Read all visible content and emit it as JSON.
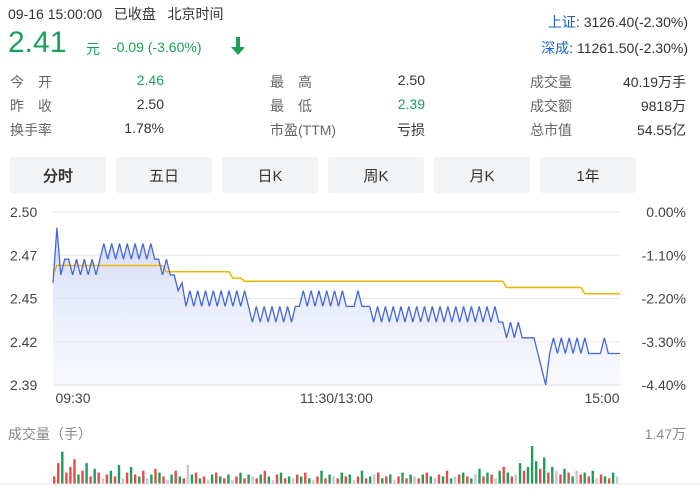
{
  "header": {
    "time": "09-16 15:00:00",
    "status": "已收盘",
    "timezone": "北京时间",
    "price": "2.41",
    "currency": "元",
    "change": "-0.09 (-3.60%)",
    "arrow_icon": "arrow-down-icon",
    "down_color": "#1aa05a"
  },
  "indices": [
    {
      "name": "上证",
      "value": ": 3126.40(-2.30%)"
    },
    {
      "name": "深成",
      "value": ": 11261.50(-2.30%)"
    }
  ],
  "stats": {
    "col1": [
      {
        "label": "今　开",
        "value": "2.46",
        "color": "green"
      },
      {
        "label": "昨　收",
        "value": "2.50",
        "color": ""
      },
      {
        "label": "换手率",
        "value": "1.78%",
        "color": ""
      }
    ],
    "col2": [
      {
        "label": "最　高",
        "value": "2.50",
        "color": ""
      },
      {
        "label": "最　低",
        "value": "2.39",
        "color": "green"
      },
      {
        "label": "市盈(TTM)",
        "value": "亏损",
        "color": ""
      }
    ],
    "col3": [
      {
        "label": "成交量",
        "value": "40.19万手",
        "color": ""
      },
      {
        "label": "成交额",
        "value": "9818万",
        "color": ""
      },
      {
        "label": "总市值",
        "value": "54.55亿",
        "color": ""
      }
    ]
  },
  "tabs": [
    "分时",
    "五日",
    "日K",
    "周K",
    "月K",
    "1年"
  ],
  "active_tab": 0,
  "volume": {
    "title": "成交量（手）",
    "max_label": "1.47万"
  },
  "chart_data": {
    "type": "line",
    "title": "",
    "x_tick_labels": [
      "09:30",
      "11:30/13:00",
      "15:00"
    ],
    "y_tick_labels": [
      "2.50",
      "2.47",
      "2.45",
      "2.42",
      "2.39"
    ],
    "y_right_tick_labels": [
      "0.00%",
      "-1.10%",
      "-2.20%",
      "-3.30%",
      "-4.40%"
    ],
    "ylim": [
      2.39,
      2.5
    ],
    "series": [
      {
        "color": "#4466dd",
        "values": [
          2.455,
          2.49,
          2.46,
          2.47,
          2.47,
          2.46,
          2.47,
          2.46,
          2.47,
          2.46,
          2.47,
          2.46,
          2.47,
          2.48,
          2.47,
          2.48,
          2.47,
          2.48,
          2.47,
          2.48,
          2.47,
          2.48,
          2.47,
          2.48,
          2.47,
          2.48,
          2.47,
          2.47,
          2.46,
          2.47,
          2.46,
          2.46,
          2.45,
          2.455,
          2.44,
          2.45,
          2.44,
          2.45,
          2.44,
          2.45,
          2.44,
          2.45,
          2.44,
          2.45,
          2.44,
          2.45,
          2.44,
          2.45,
          2.44,
          2.45,
          2.44,
          2.43,
          2.44,
          2.43,
          2.44,
          2.43,
          2.44,
          2.43,
          2.44,
          2.43,
          2.44,
          2.43,
          2.44,
          2.44,
          2.45,
          2.44,
          2.45,
          2.44,
          2.45,
          2.44,
          2.45,
          2.44,
          2.45,
          2.44,
          2.45,
          2.44,
          2.44,
          2.44,
          2.45,
          2.44,
          2.44,
          2.44,
          2.43,
          2.44,
          2.43,
          2.44,
          2.43,
          2.44,
          2.43,
          2.44,
          2.43,
          2.44,
          2.43,
          2.44,
          2.43,
          2.44,
          2.43,
          2.44,
          2.43,
          2.44,
          2.43,
          2.44,
          2.43,
          2.44,
          2.43,
          2.44,
          2.43,
          2.44,
          2.43,
          2.44,
          2.43,
          2.44,
          2.43,
          2.44,
          2.43,
          2.43,
          2.42,
          2.43,
          2.42,
          2.43,
          2.42,
          2.42,
          2.42,
          2.42,
          2.41,
          2.4,
          2.39,
          2.41,
          2.42,
          2.41,
          2.42,
          2.41,
          2.42,
          2.41,
          2.42,
          2.41,
          2.42,
          2.41,
          2.41,
          2.41,
          2.41,
          2.42,
          2.41,
          2.41,
          2.41,
          2.41
        ]
      },
      {
        "color": "#f0b400",
        "values": [
          2.46,
          2.466,
          2.466,
          2.466,
          2.466,
          2.466,
          2.466,
          2.466,
          2.466,
          2.466,
          2.466,
          2.466,
          2.466,
          2.466,
          2.466,
          2.466,
          2.466,
          2.466,
          2.466,
          2.466,
          2.466,
          2.466,
          2.466,
          2.466,
          2.466,
          2.466,
          2.466,
          2.466,
          2.466,
          2.462,
          2.462,
          2.462,
          2.462,
          2.462,
          2.462,
          2.462,
          2.462,
          2.462,
          2.462,
          2.462,
          2.462,
          2.462,
          2.462,
          2.462,
          2.462,
          2.462,
          2.458,
          2.458,
          2.458,
          2.456,
          2.456,
          2.456,
          2.456,
          2.456,
          2.456,
          2.456,
          2.456,
          2.456,
          2.456,
          2.456,
          2.456,
          2.456,
          2.456,
          2.456,
          2.456,
          2.456,
          2.456,
          2.456,
          2.456,
          2.456,
          2.456,
          2.456,
          2.456,
          2.456,
          2.456,
          2.456,
          2.456,
          2.456,
          2.456,
          2.456,
          2.456,
          2.456,
          2.456,
          2.456,
          2.456,
          2.456,
          2.456,
          2.456,
          2.456,
          2.456,
          2.456,
          2.456,
          2.456,
          2.456,
          2.456,
          2.456,
          2.456,
          2.456,
          2.456,
          2.456,
          2.456,
          2.456,
          2.456,
          2.456,
          2.456,
          2.456,
          2.456,
          2.456,
          2.456,
          2.456,
          2.456,
          2.456,
          2.456,
          2.456,
          2.456,
          2.456,
          2.452,
          2.452,
          2.452,
          2.452,
          2.452,
          2.452,
          2.452,
          2.452,
          2.452,
          2.452,
          2.452,
          2.452,
          2.452,
          2.452,
          2.452,
          2.452,
          2.452,
          2.452,
          2.452,
          2.452,
          2.448,
          2.448,
          2.448,
          2.448,
          2.448,
          2.448,
          2.448,
          2.448,
          2.448,
          2.448
        ]
      }
    ],
    "volume_bars": [
      {
        "v": 0.2,
        "c": "r"
      },
      {
        "v": 0.55,
        "c": "r"
      },
      {
        "v": 0.85,
        "c": "g"
      },
      {
        "v": 0.3,
        "c": "r"
      },
      {
        "v": 0.45,
        "c": "r"
      },
      {
        "v": 0.65,
        "c": "r"
      },
      {
        "v": 0.25,
        "c": "g"
      },
      {
        "v": 0.35,
        "c": "r"
      },
      {
        "v": 0.55,
        "c": "g"
      },
      {
        "v": 0.2,
        "c": "r"
      },
      {
        "v": 0.4,
        "c": "g"
      },
      {
        "v": 0.3,
        "c": "r"
      },
      {
        "v": 0.15,
        "c": "x"
      },
      {
        "v": 0.25,
        "c": "r"
      },
      {
        "v": 0.35,
        "c": "g"
      },
      {
        "v": 0.2,
        "c": "r"
      },
      {
        "v": 0.5,
        "c": "g"
      },
      {
        "v": 0.15,
        "c": "x"
      },
      {
        "v": 0.3,
        "c": "r"
      },
      {
        "v": 0.45,
        "c": "g"
      },
      {
        "v": 0.25,
        "c": "r"
      },
      {
        "v": 0.2,
        "c": "g"
      },
      {
        "v": 0.35,
        "c": "r"
      },
      {
        "v": 0.15,
        "c": "x"
      },
      {
        "v": 0.25,
        "c": "g"
      },
      {
        "v": 0.4,
        "c": "r"
      },
      {
        "v": 0.3,
        "c": "g"
      },
      {
        "v": 0.2,
        "c": "r"
      },
      {
        "v": 0.1,
        "c": "x"
      },
      {
        "v": 0.25,
        "c": "g"
      },
      {
        "v": 0.35,
        "c": "r"
      },
      {
        "v": 0.2,
        "c": "g"
      },
      {
        "v": 0.15,
        "c": "r"
      },
      {
        "v": 0.5,
        "c": "x"
      },
      {
        "v": 0.25,
        "c": "g"
      },
      {
        "v": 0.3,
        "c": "r"
      },
      {
        "v": 0.15,
        "c": "g"
      },
      {
        "v": 0.2,
        "c": "r"
      },
      {
        "v": 0.1,
        "c": "x"
      },
      {
        "v": 0.25,
        "c": "g"
      },
      {
        "v": 0.3,
        "c": "r"
      },
      {
        "v": 0.2,
        "c": "g"
      },
      {
        "v": 0.15,
        "c": "r"
      },
      {
        "v": 0.25,
        "c": "g"
      },
      {
        "v": 0.1,
        "c": "x"
      },
      {
        "v": 0.2,
        "c": "r"
      },
      {
        "v": 0.3,
        "c": "g"
      },
      {
        "v": 0.15,
        "c": "r"
      },
      {
        "v": 0.25,
        "c": "g"
      },
      {
        "v": 0.2,
        "c": "x"
      },
      {
        "v": 0.15,
        "c": "r"
      },
      {
        "v": 0.25,
        "c": "g"
      },
      {
        "v": 0.35,
        "c": "r"
      },
      {
        "v": 0.2,
        "c": "g"
      },
      {
        "v": 0.1,
        "c": "x"
      },
      {
        "v": 0.25,
        "c": "r"
      },
      {
        "v": 0.3,
        "c": "g"
      },
      {
        "v": 0.15,
        "c": "r"
      },
      {
        "v": 0.2,
        "c": "g"
      },
      {
        "v": 0.15,
        "c": "x"
      },
      {
        "v": 0.25,
        "c": "r"
      },
      {
        "v": 0.2,
        "c": "g"
      },
      {
        "v": 0.3,
        "c": "r"
      },
      {
        "v": 0.15,
        "c": "g"
      },
      {
        "v": 0.1,
        "c": "x"
      },
      {
        "v": 0.2,
        "c": "r"
      },
      {
        "v": 0.35,
        "c": "g"
      },
      {
        "v": 0.15,
        "c": "r"
      },
      {
        "v": 0.25,
        "c": "g"
      },
      {
        "v": 0.2,
        "c": "x"
      },
      {
        "v": 0.15,
        "c": "r"
      },
      {
        "v": 0.3,
        "c": "g"
      },
      {
        "v": 0.2,
        "c": "r"
      },
      {
        "v": 0.25,
        "c": "g"
      },
      {
        "v": 0.1,
        "c": "x"
      },
      {
        "v": 0.2,
        "c": "r"
      },
      {
        "v": 0.35,
        "c": "g"
      },
      {
        "v": 0.15,
        "c": "r"
      },
      {
        "v": 0.2,
        "c": "g"
      },
      {
        "v": 0.25,
        "c": "x"
      },
      {
        "v": 0.3,
        "c": "r"
      },
      {
        "v": 0.15,
        "c": "g"
      },
      {
        "v": 0.2,
        "c": "r"
      },
      {
        "v": 0.25,
        "c": "g"
      },
      {
        "v": 0.1,
        "c": "x"
      },
      {
        "v": 0.2,
        "c": "r"
      },
      {
        "v": 0.3,
        "c": "g"
      },
      {
        "v": 0.15,
        "c": "r"
      },
      {
        "v": 0.25,
        "c": "g"
      },
      {
        "v": 0.2,
        "c": "x"
      },
      {
        "v": 0.15,
        "c": "r"
      },
      {
        "v": 0.25,
        "c": "g"
      },
      {
        "v": 0.3,
        "c": "r"
      },
      {
        "v": 0.2,
        "c": "g"
      },
      {
        "v": 0.15,
        "c": "x"
      },
      {
        "v": 0.25,
        "c": "r"
      },
      {
        "v": 0.2,
        "c": "g"
      },
      {
        "v": 0.35,
        "c": "r"
      },
      {
        "v": 0.15,
        "c": "g"
      },
      {
        "v": 0.2,
        "c": "x"
      },
      {
        "v": 0.25,
        "c": "r"
      },
      {
        "v": 0.3,
        "c": "g"
      },
      {
        "v": 0.2,
        "c": "r"
      },
      {
        "v": 0.15,
        "c": "g"
      },
      {
        "v": 0.25,
        "c": "x"
      },
      {
        "v": 0.4,
        "c": "g"
      },
      {
        "v": 0.2,
        "c": "r"
      },
      {
        "v": 0.3,
        "c": "g"
      },
      {
        "v": 0.25,
        "c": "r"
      },
      {
        "v": 0.15,
        "c": "x"
      },
      {
        "v": 0.35,
        "c": "g"
      },
      {
        "v": 0.45,
        "c": "r"
      },
      {
        "v": 0.3,
        "c": "g"
      },
      {
        "v": 0.2,
        "c": "r"
      },
      {
        "v": 0.25,
        "c": "x"
      },
      {
        "v": 0.55,
        "c": "g"
      },
      {
        "v": 0.35,
        "c": "r"
      },
      {
        "v": 0.45,
        "c": "g"
      },
      {
        "v": 1.0,
        "c": "g"
      },
      {
        "v": 0.6,
        "c": "g"
      },
      {
        "v": 0.4,
        "c": "r"
      },
      {
        "v": 0.7,
        "c": "g"
      },
      {
        "v": 0.3,
        "c": "r"
      },
      {
        "v": 0.45,
        "c": "g"
      },
      {
        "v": 0.35,
        "c": "x"
      },
      {
        "v": 0.25,
        "c": "r"
      },
      {
        "v": 0.4,
        "c": "g"
      },
      {
        "v": 0.3,
        "c": "r"
      },
      {
        "v": 0.2,
        "c": "g"
      },
      {
        "v": 0.35,
        "c": "x"
      },
      {
        "v": 0.25,
        "c": "r"
      },
      {
        "v": 0.3,
        "c": "g"
      },
      {
        "v": 0.2,
        "c": "r"
      },
      {
        "v": 0.35,
        "c": "g"
      },
      {
        "v": 0.15,
        "c": "x"
      },
      {
        "v": 0.25,
        "c": "r"
      },
      {
        "v": 0.2,
        "c": "g"
      },
      {
        "v": 0.15,
        "c": "r"
      },
      {
        "v": 0.3,
        "c": "g"
      },
      {
        "v": 0.2,
        "c": "x"
      }
    ]
  }
}
